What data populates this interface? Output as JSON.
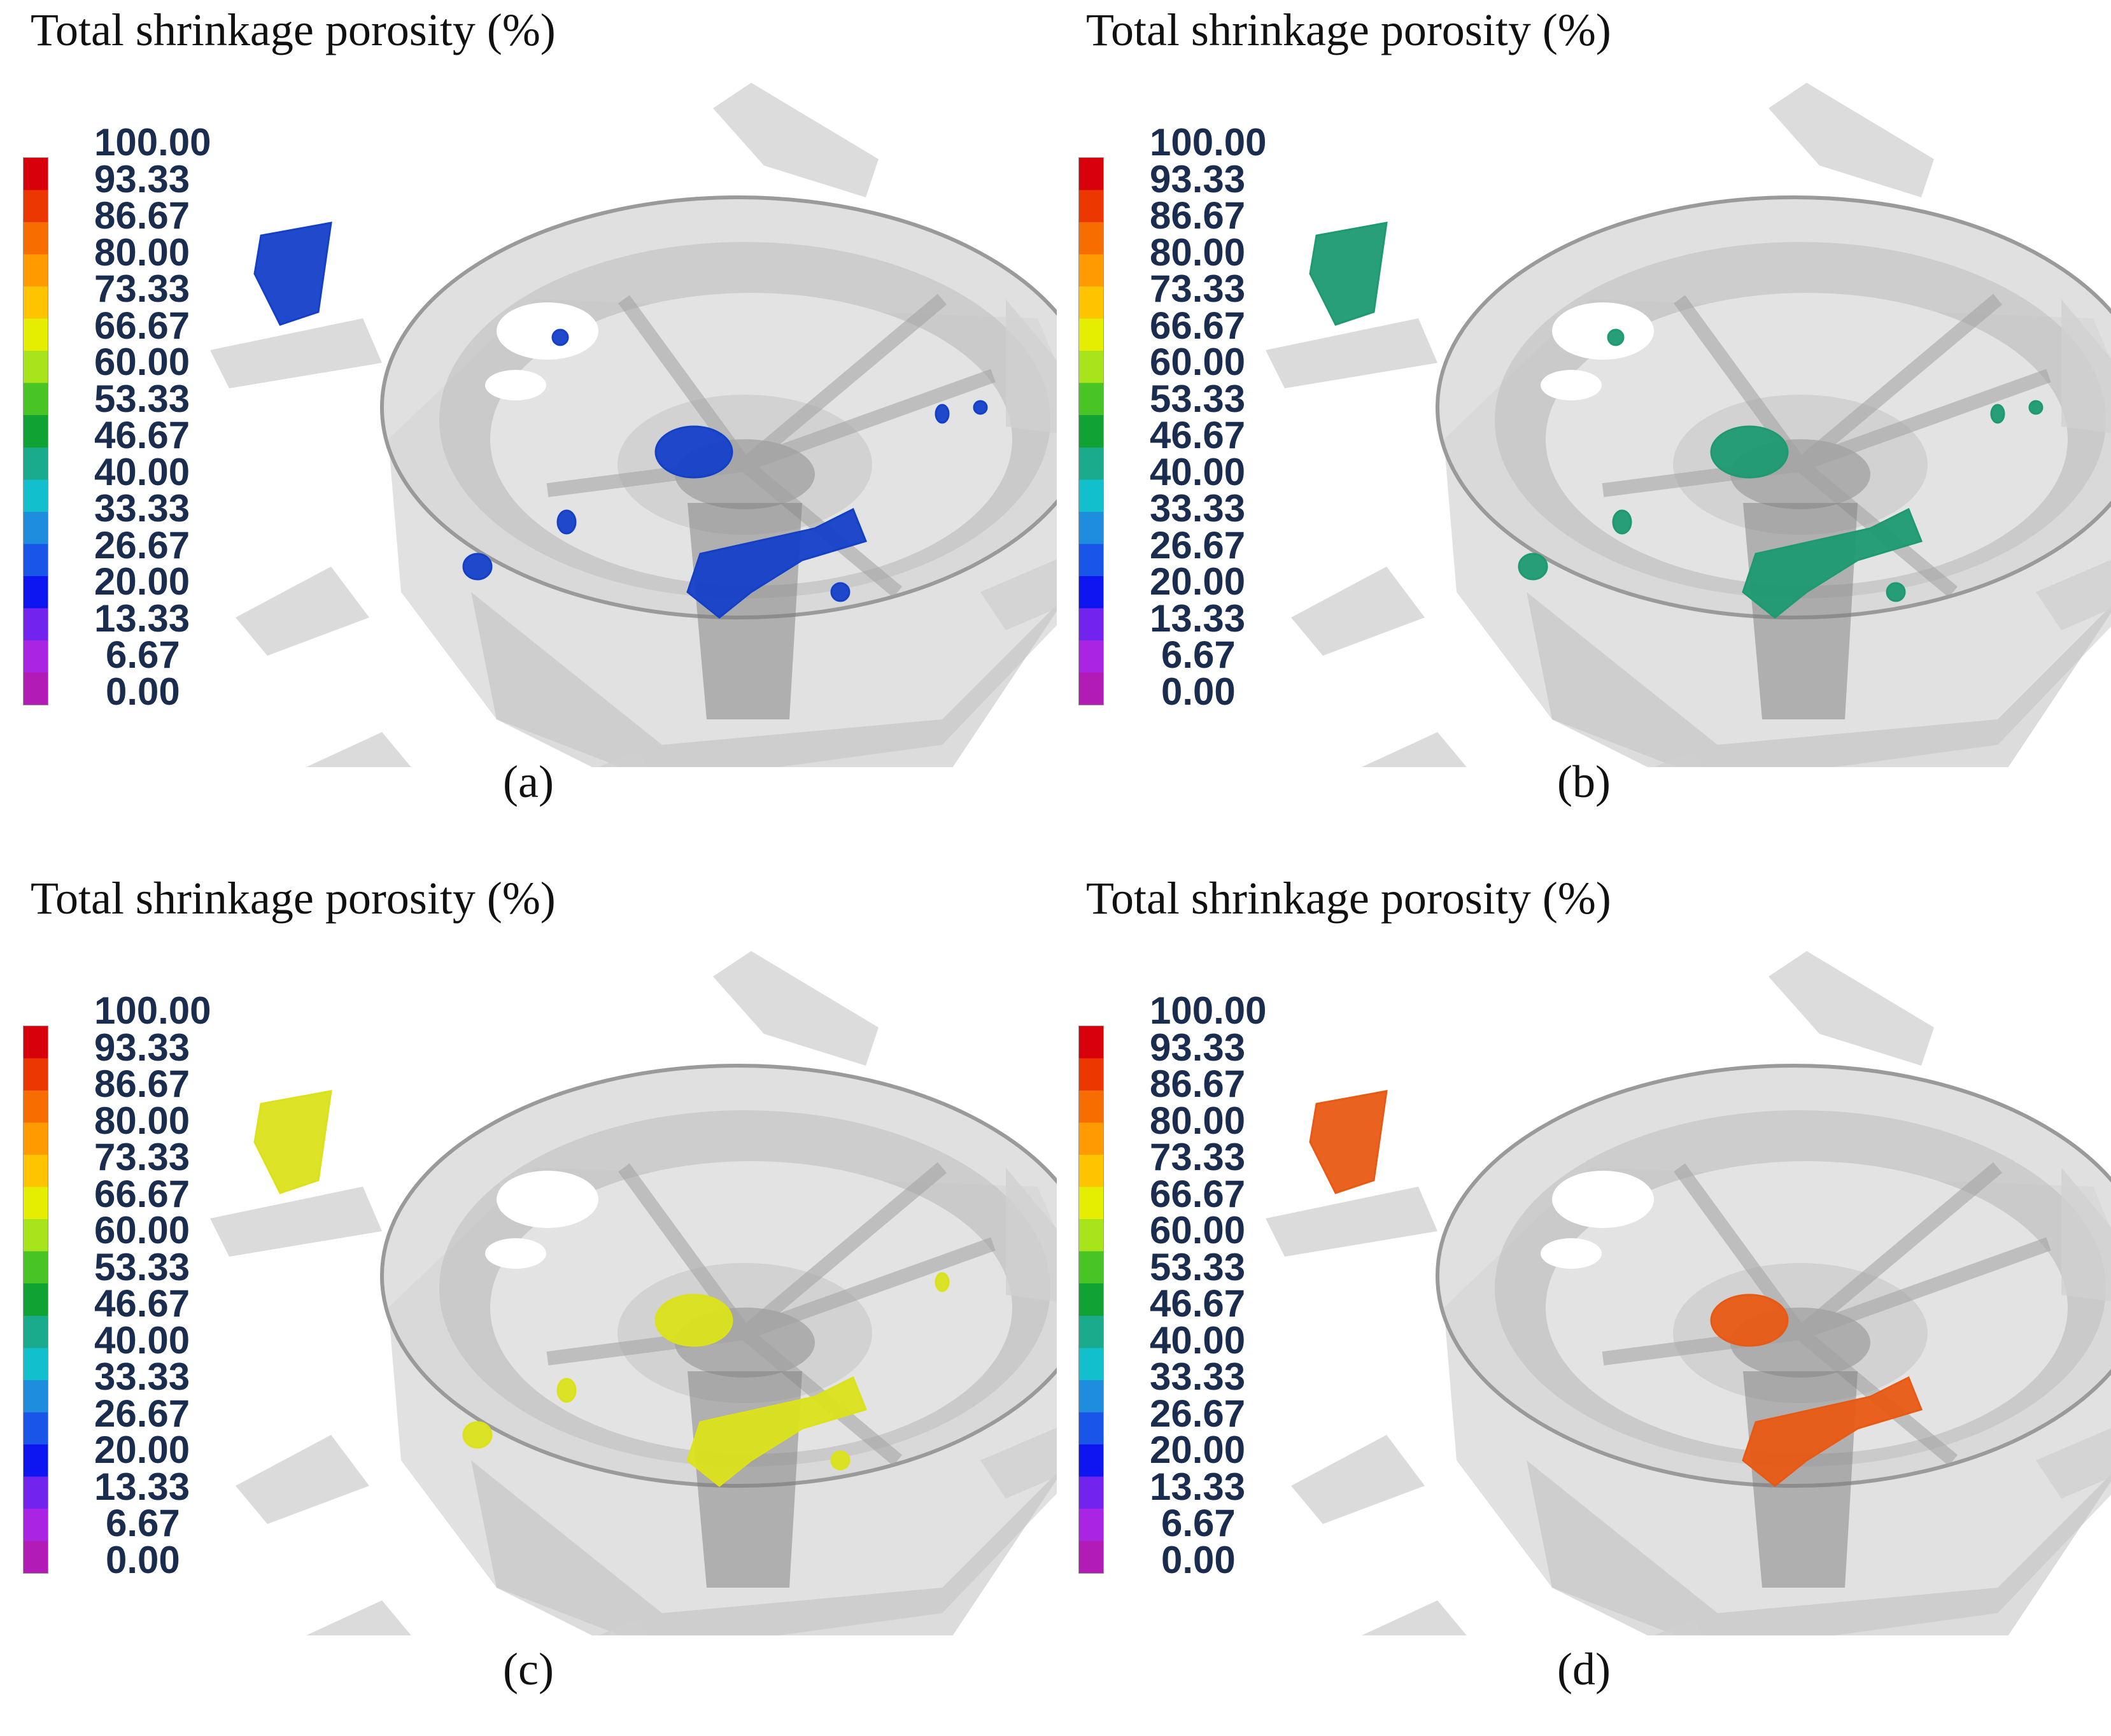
{
  "colorbar": {
    "tick_labels": [
      "100.00",
      "93.33",
      "86.67",
      "80.00",
      "73.33",
      "66.67",
      "60.00",
      "53.33",
      "46.67",
      "40.00",
      "33.33",
      "26.67",
      "20.00",
      "13.33",
      "6.67",
      "0.00"
    ],
    "segment_colors": [
      "#d7000b",
      "#ec3800",
      "#f76d00",
      "#ff9a00",
      "#ffc400",
      "#e5ee00",
      "#a7e41b",
      "#48c525",
      "#11a234",
      "#19ab8c",
      "#12bfcc",
      "#1f8dde",
      "#1855e8",
      "#0d16f0",
      "#7224ee",
      "#a924e3",
      "#b31bb7"
    ]
  },
  "panels": [
    {
      "title": "Total shrinkage porosity (%)",
      "label": "(a)",
      "defect_color": "#1440c8",
      "defect_level": "density",
      "visible_value_approx": 26.67
    },
    {
      "title": "Total shrinkage porosity (%)",
      "label": "(b)",
      "defect_color": "#1d9a72",
      "defect_level": "density",
      "visible_value_approx": 46.67
    },
    {
      "title": "Total shrinkage porosity (%)",
      "label": "(c)",
      "defect_color": "#dbe21a",
      "defect_level": "density",
      "visible_value_approx": 66.67
    },
    {
      "title": "Total shrinkage porosity (%)",
      "label": "(d)",
      "defect_color": "#e85a14",
      "defect_level": "density",
      "visible_value_approx": 93.33
    }
  ]
}
